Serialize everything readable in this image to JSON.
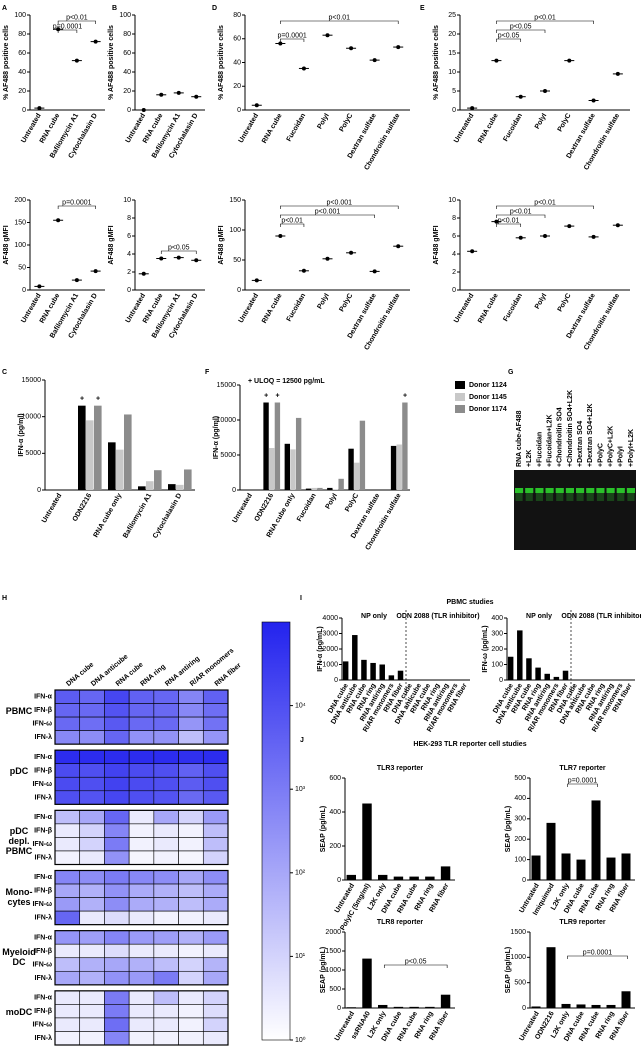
{
  "panel_labels": [
    "A",
    "B",
    "D",
    "E",
    "C",
    "F",
    "G",
    "H",
    "I",
    "J"
  ],
  "section_titles": [
    "PBMC studies",
    "HEK-293 TLR reporter cell studies"
  ],
  "chart_data": [
    {
      "type": "dot",
      "y_label": "% AF488 positive cells",
      "categories": [
        "Untreated",
        "RNA cube",
        "Bafilomycin A1",
        "Cytochalasin D"
      ],
      "values": [
        2,
        85,
        52,
        72
      ],
      "color": "#000000",
      "ylim": [
        0,
        100
      ],
      "yticks": [
        0,
        20,
        40,
        60,
        80,
        100
      ],
      "annotations": [
        "p<0.01",
        "p=0.0001"
      ]
    },
    {
      "type": "dot",
      "y_label": "AF488 gMFI",
      "categories": [
        "Untreated",
        "RNA cube",
        "Bafilomycin A1",
        "Cytochalasin D"
      ],
      "values": [
        8,
        155,
        22,
        42
      ],
      "color": "#000000",
      "ylim": [
        0,
        200
      ],
      "yticks": [
        0,
        50,
        100,
        150,
        200
      ],
      "annotations": [
        "p=0.0001"
      ]
    },
    {
      "type": "dot",
      "y_label": "% AF488 positive cells",
      "categories": [
        "Untreated",
        "RNA cube",
        "Bafilomycin A1",
        "Cytochalasin D"
      ],
      "values": [
        0,
        16,
        18,
        14
      ],
      "color": "#000000",
      "ylim": [
        0,
        100
      ],
      "yticks": [
        0,
        20,
        40,
        60,
        80,
        100
      ],
      "annotations": []
    },
    {
      "type": "dot",
      "y_label": "AF488 gMFI",
      "categories": [
        "Untreated",
        "RNA cube",
        "Bafilomycin A1",
        "Cytochalasin D"
      ],
      "values": [
        1.8,
        3.5,
        3.6,
        3.3
      ],
      "color": "#000000",
      "ylim": [
        0,
        10
      ],
      "yticks": [
        0,
        2,
        4,
        6,
        8,
        10
      ],
      "annotations": [
        "p<0.05"
      ]
    },
    {
      "type": "dot",
      "y_label": "% AF488 positive cells",
      "categories": [
        "Untreated",
        "RNA cube",
        "Fucoidan",
        "PolyI",
        "PolyC",
        "Dextran sulfate",
        "Chondroitin sulfate"
      ],
      "values": [
        4,
        56,
        35,
        63,
        52,
        42,
        53
      ],
      "color": "#000000",
      "ylim": [
        0,
        80
      ],
      "yticks": [
        0,
        20,
        40,
        60,
        80
      ],
      "annotations": [
        "p<0.01",
        "p=0.0001"
      ]
    },
    {
      "type": "dot",
      "y_label": "AF488 gMFI",
      "categories": [
        "Untreated",
        "RNA cube",
        "Fucoidan",
        "PolyI",
        "PolyC",
        "Dextran sulfate",
        "Chondroitin sulfate"
      ],
      "values": [
        16,
        90,
        32,
        52,
        62,
        31,
        73
      ],
      "color": "#000000",
      "ylim": [
        0,
        150
      ],
      "yticks": [
        0,
        50,
        100,
        150
      ],
      "annotations": [
        "p<0.001",
        "p<0.001",
        "p<0.01"
      ]
    },
    {
      "type": "dot",
      "y_label": "% AF488 positive cells",
      "categories": [
        "Untreated",
        "RNA cube",
        "Fucoidan",
        "PolyI",
        "PolyC",
        "Dextran sulfate",
        "Chondroitin sulfate"
      ],
      "values": [
        0.5,
        13,
        3.5,
        5,
        13,
        2.5,
        9.5
      ],
      "color": "#000000",
      "ylim": [
        0,
        25
      ],
      "yticks": [
        0,
        5,
        10,
        15,
        20,
        25
      ],
      "annotations": [
        "p<0.01",
        "p<0.05",
        "p<0.05"
      ]
    },
    {
      "type": "dot",
      "y_label": "AF488 gMFI",
      "categories": [
        "Untreated",
        "RNA cube",
        "Fucoidan",
        "PolyI",
        "PolyC",
        "Dextran sulfate",
        "Chondroitin sulfate"
      ],
      "values": [
        4.3,
        7.6,
        5.8,
        6.0,
        7.1,
        5.9,
        7.2
      ],
      "color": "#000000",
      "ylim": [
        0,
        10
      ],
      "yticks": [
        0,
        2,
        4,
        6,
        8,
        10
      ],
      "annotations": [
        "p<0.01",
        "p<0.01",
        "p<0.01"
      ]
    },
    {
      "type": "bar",
      "y_label": "IFN-α (pg/ml)",
      "categories": [
        "Untreated",
        "ODN2216",
        "RNA cube only",
        "Bafilomycin A1",
        "Cytochalasin D"
      ],
      "series": [
        {
          "name": "Donor 1124",
          "color": "#000000",
          "values": [
            0,
            11500,
            6500,
            500,
            800
          ]
        },
        {
          "name": "Donor 1145",
          "color": "#c8c8c8",
          "values": [
            0,
            9500,
            5500,
            1200,
            700
          ]
        },
        {
          "name": "Donor 1174",
          "color": "#8c8c8c",
          "values": [
            0,
            11500,
            10300,
            2700,
            2800
          ]
        }
      ],
      "ylim": [
        0,
        15000
      ],
      "yticks": [
        0,
        5000,
        10000,
        15000
      ],
      "annotations": [
        "+",
        "+"
      ]
    },
    {
      "type": "bar",
      "y_label": "IFN-α (pg/ml)",
      "categories": [
        "Untreated",
        "ODN2216",
        "RNA cube only",
        "Fucoidan",
        "PolyI",
        "PolyC",
        "Dextran sulfate",
        "Chondroitin sulfate"
      ],
      "series": [
        {
          "name": "Donor 1124",
          "color": "#000000",
          "values": [
            0,
            12500,
            6600,
            200,
            300,
            5900,
            0,
            6300
          ]
        },
        {
          "name": "Donor 1145",
          "color": "#c8c8c8",
          "values": [
            0,
            6000,
            5800,
            300,
            100,
            3900,
            0,
            6500
          ]
        },
        {
          "name": "Donor 1174",
          "color": "#8c8c8c",
          "values": [
            0,
            12500,
            10300,
            300,
            1600,
            9900,
            0,
            12500
          ]
        }
      ],
      "ylim": [
        0,
        15000
      ],
      "yticks": [
        0,
        5000,
        10000,
        15000
      ],
      "legend": "right",
      "annotations": [
        "+ ULOQ = 12500 pg/mL",
        "+",
        "+",
        "+"
      ]
    },
    {
      "type": "gel",
      "lanes": [
        "RNA cube-AF488",
        "+L2K",
        "+Fucoidan",
        "+Fucoidan+L2K",
        "+Chondroitin SO4",
        "+Chondroitin SO4+L2K",
        "+Dextran SO4",
        "+Dextran SO4+L2K",
        "+PolyC",
        "+PolyC+L2K",
        "+PolyI",
        "+PolyI+L2K"
      ],
      "color": "#2fe02f"
    },
    {
      "type": "heatmap",
      "columns": [
        "DNA cube",
        "DNA anticube",
        "RNA cube",
        "RNA ring",
        "RNA antiring",
        "R/AR monomers",
        "RNA fiber"
      ],
      "row_groups": [
        {
          "name": "PBMC",
          "rows": [
            "IFN-α",
            "IFN-β",
            "IFN-ω",
            "IFN-λ"
          ],
          "values": [
            [
              5000,
              3000,
              16000,
              4000,
              3000,
              600,
              4000
            ],
            [
              3000,
              2500,
              8000,
              3000,
              2500,
              500,
              2000
            ],
            [
              2500,
              2000,
              6000,
              2500,
              2500,
              250,
              1600
            ],
            [
              500,
              400,
              3000,
              300,
              300,
              30,
              250
            ]
          ]
        },
        {
          "name": "pDC",
          "rows": [
            "IFN-α",
            "IFN-β",
            "IFN-ω",
            "IFN-λ"
          ],
          "values": [
            [
              63000,
              63000,
              63000,
              63000,
              63000,
              50000,
              63000
            ],
            [
              12500,
              10000,
              20000,
              12500,
              10000,
              4000,
              10000
            ],
            [
              12500,
              10000,
              20000,
              12500,
              10000,
              5000,
              10000
            ],
            [
              10000,
              8000,
              16000,
              10000,
              8000,
              2500,
              6000
            ]
          ]
        },
        {
          "name": "pDC depl. PBMC",
          "rows": [
            "IFN-α",
            "IFN-β",
            "IFN-ω",
            "IFN-λ"
          ],
          "values": [
            [
              30,
              100,
              3000,
              3,
              100,
              10,
              200
            ],
            [
              3,
              10,
              600,
              2,
              3,
              2,
              30
            ],
            [
              3,
              10,
              1000,
              2,
              3,
              2,
              30
            ],
            [
              2,
              3,
              300,
              1.6,
              2,
              1.6,
              10
            ]
          ]
        },
        {
          "name": "Mono-cytes",
          "rows": [
            "IFN-α",
            "IFN-β",
            "IFN-ω",
            "IFN-λ"
          ],
          "values": [
            [
              600,
              400,
              1000,
              500,
              400,
              100,
              400
            ],
            [
              100,
              60,
              300,
              80,
              60,
              30,
              80
            ],
            [
              200,
              60,
              400,
              80,
              60,
              30,
              80
            ],
            [
              3000,
              3,
              6,
              3,
              2,
              2,
              3
            ]
          ]
        },
        {
          "name": "Myeloid DC",
          "rows": [
            "IFN-α",
            "IFN-β",
            "IFN-ω",
            "IFN-λ"
          ],
          "values": [
            [
              250,
              160,
              600,
              200,
              160,
              60,
              200
            ],
            [
              3,
              3,
              6,
              3,
              3,
              2,
              3
            ],
            [
              30,
              60,
              100,
              60,
              30,
              10,
              50
            ],
            [
              100,
              60,
              300,
              200,
              1000,
              10,
              100
            ]
          ]
        },
        {
          "name": "moDC",
          "rows": [
            "IFN-α",
            "IFN-β",
            "IFN-ω",
            "IFN-λ"
          ],
          "values": [
            [
              3,
              3,
              1000,
              3,
              30,
              3,
              10
            ],
            [
              3,
              3,
              1000,
              3,
              3,
              2,
              6
            ],
            [
              3,
              3,
              2000,
              3,
              3,
              2,
              10
            ],
            [
              2,
              2,
              600,
              2,
              2,
              2,
              3
            ]
          ]
        }
      ],
      "zlim": [
        1,
        100000
      ],
      "zticks": [
        {
          "value": 1,
          "label": "10⁰"
        },
        {
          "value": 10,
          "label": "10¹"
        },
        {
          "value": 100,
          "label": "10²"
        },
        {
          "value": 1000,
          "label": "10³"
        },
        {
          "value": 10000,
          "label": "10⁴"
        }
      ],
      "log_scale": true,
      "colors": [
        "#ffffff",
        "#2323ee"
      ]
    },
    {
      "type": "bar",
      "y_label": "IFN-α (pg/mL)",
      "categories": [
        "DNA cube",
        "DNA anticube",
        "RNA cube",
        "RNA ring",
        "RNA antiring",
        "R/AR monomers",
        "RNA fiber",
        "DNA cube",
        "DNA anticube",
        "RNA cube",
        "RNA ring",
        "RNA antiring",
        "R/AR monomers",
        "RNA fiber"
      ],
      "values": [
        1200,
        2900,
        1300,
        1100,
        1000,
        300,
        600,
        20,
        15,
        20,
        15,
        15,
        10,
        15
      ],
      "color": "#000000",
      "ylim": [
        0,
        4000
      ],
      "yticks": [
        0,
        1000,
        2000,
        3000,
        4000
      ],
      "annotations": [
        "NP only",
        "ODN 2088 (TLR inhibitor)"
      ]
    },
    {
      "type": "bar",
      "y_label": "IFN-ω (pg/mL)",
      "categories": [
        "DNA cube",
        "DNA anticube",
        "RNA cube",
        "RNA ring",
        "RNA antiring",
        "R/AR monomers",
        "RNA fiber",
        "DNA cube",
        "DNA anticube",
        "RNA cube",
        "RNA ring",
        "RNA antiring",
        "R/AR monomers",
        "RNA fiber"
      ],
      "values": [
        150,
        320,
        140,
        80,
        40,
        20,
        60,
        3,
        2,
        3,
        2,
        2,
        2,
        3
      ],
      "color": "#000000",
      "ylim": [
        0,
        400
      ],
      "yticks": [
        0,
        100,
        200,
        300,
        400
      ],
      "annotations": [
        "NP only",
        "ODN 2088 (TLR inhibitor)"
      ]
    },
    {
      "type": "bar",
      "title": "TLR3 reporter",
      "y_label": "SEAP (pg/mL)",
      "categories": [
        "Untreated",
        "PolyIC (5mg/ml)",
        "L2K only",
        "DNA cube",
        "RNA cube",
        "RNA ring",
        "RNA fiber"
      ],
      "values": [
        30,
        450,
        30,
        20,
        20,
        20,
        80
      ],
      "color": "#000000",
      "ylim": [
        0,
        600
      ],
      "yticks": [
        0,
        200,
        400,
        600
      ],
      "annotations": []
    },
    {
      "type": "bar",
      "title": "TLR7 reporter",
      "y_label": "SEAP (pg/mL)",
      "categories": [
        "Untreated",
        "Imiquimod",
        "L2K only",
        "DNA cube",
        "RNA cube",
        "RNA ring",
        "RNA fiber"
      ],
      "values": [
        120,
        280,
        130,
        100,
        390,
        110,
        130
      ],
      "color": "#000000",
      "ylim": [
        0,
        500
      ],
      "yticks": [
        0,
        100,
        200,
        300,
        400,
        500
      ],
      "annotations": [
        "p=0.0001"
      ]
    },
    {
      "type": "bar",
      "title": "TLR8 reporter",
      "y_label": "SEAP (pg/mL)",
      "categories": [
        "Untreated",
        "ssRNA40",
        "L2K only",
        "DNA cube",
        "RNA cube",
        "RNA ring",
        "RNA fiber"
      ],
      "values": [
        20,
        1300,
        80,
        30,
        30,
        30,
        350
      ],
      "color": "#000000",
      "ylim": [
        0,
        2000
      ],
      "yticks": [
        0,
        500,
        1000,
        1500,
        2000
      ],
      "annotations": [
        "p<0.05"
      ]
    },
    {
      "type": "bar",
      "title": "TLR9 reporter",
      "y_label": "SEAP (pg/mL)",
      "categories": [
        "Untreated",
        "ODN2216",
        "L2K only",
        "DNA cube",
        "RNA cube",
        "RNA ring",
        "RNA fiber"
      ],
      "values": [
        30,
        1200,
        80,
        70,
        60,
        60,
        330
      ],
      "color": "#000000",
      "ylim": [
        0,
        1500
      ],
      "yticks": [
        0,
        500,
        1000,
        1500
      ],
      "annotations": [
        "p=0.0001"
      ]
    }
  ]
}
